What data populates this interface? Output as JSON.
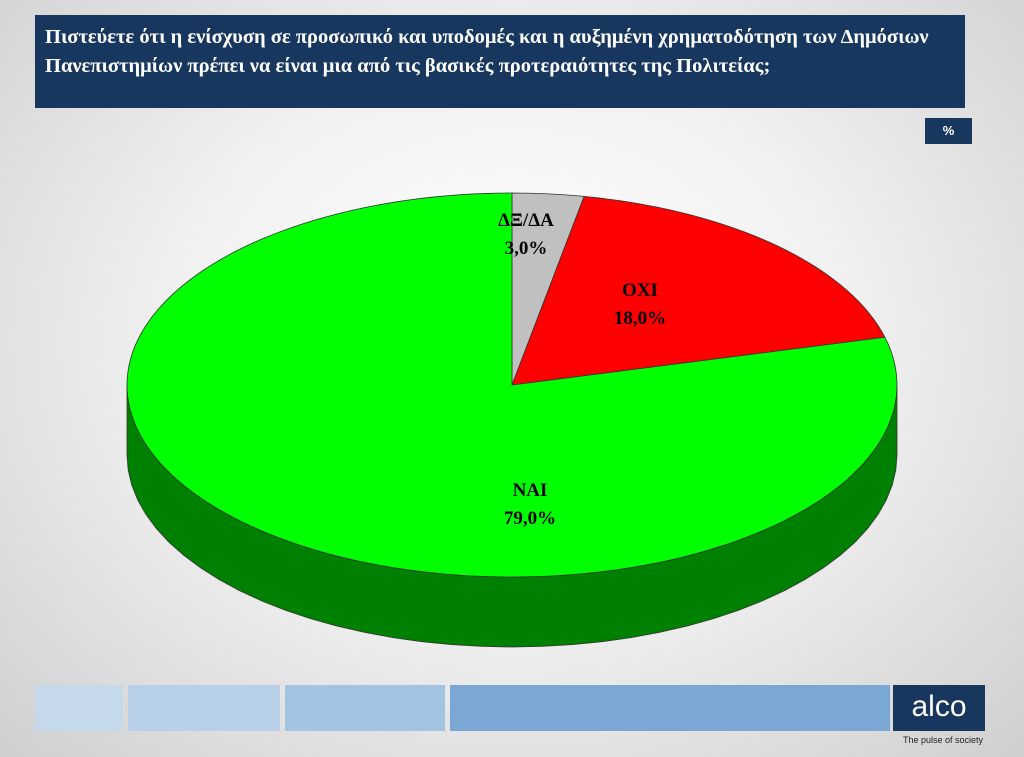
{
  "chart_data": {
    "type": "pie",
    "title": "Πιστεύετε ότι η ενίσχυση σε προσωπικό και υποδομές  και η αυξημένη χρηματοδότηση των Δημόσιων Πανεπιστημίων πρέπει να είναι μια από τις βασικές προτεραιότητες της Πολιτείας;",
    "unit_label": "%",
    "categories": [
      "ΔΞ/ΔΑ",
      "ΟΧΙ",
      "ΝΑΙ"
    ],
    "values": [
      3,
      18,
      79
    ],
    "value_labels": [
      "3,0%",
      "18,0%",
      "79,0%"
    ],
    "colors": [
      "#c0c0c0",
      "#ff0000",
      "#00ff00"
    ]
  },
  "logo": {
    "text": "alco",
    "tagline": "The pulse of society"
  }
}
